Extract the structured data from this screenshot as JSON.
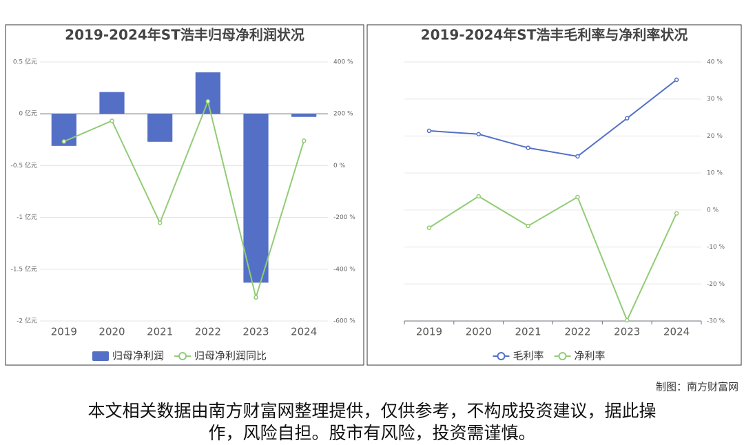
{
  "chart_data": [
    {
      "type": "bar",
      "title": "2019-2024年ST浩丰归母净利润状况",
      "categories": [
        "2019",
        "2020",
        "2021",
        "2022",
        "2023",
        "2024"
      ],
      "series": [
        {
          "name": "归母净利润",
          "type": "bar",
          "color": "#5470c6",
          "values": [
            -0.31,
            0.21,
            -0.27,
            0.4,
            -1.63,
            -0.03
          ]
        },
        {
          "name": "归母净利润同比",
          "type": "line",
          "axis": "y2",
          "color": "#91cc75",
          "values": [
            93,
            173,
            -221,
            248,
            -509,
            96
          ]
        }
      ],
      "ylim": [
        -2,
        0.5
      ],
      "yticks": [
        {
          "value": 0.5,
          "label": "0.5 亿元"
        },
        {
          "value": 0,
          "label": "0 亿元"
        },
        {
          "value": -0.5,
          "label": "-0.5 亿元"
        },
        {
          "value": -1,
          "label": "-1 亿元"
        },
        {
          "value": -1.5,
          "label": "-1.5 亿元"
        },
        {
          "value": -2,
          "label": "-2 亿元"
        }
      ],
      "y2lim": [
        -600,
        400
      ],
      "y2ticks": [
        {
          "value": 400,
          "label": "400 %"
        },
        {
          "value": 200,
          "label": "200 %"
        },
        {
          "value": 0,
          "label": "0 %"
        },
        {
          "value": -200,
          "label": "-200 %"
        },
        {
          "value": -400,
          "label": "-400 %"
        },
        {
          "value": -600,
          "label": "-600 %"
        }
      ],
      "grid": true
    },
    {
      "type": "line",
      "title": "2019-2024年ST浩丰毛利率与净利率状况",
      "categories": [
        "2019",
        "2020",
        "2021",
        "2022",
        "2023",
        "2024"
      ],
      "series": [
        {
          "name": "毛利率",
          "type": "line",
          "axis": "y2",
          "color": "#5470c6",
          "values": [
            21.4,
            20.5,
            16.8,
            14.5,
            24.8,
            35.2
          ]
        },
        {
          "name": "净利率",
          "type": "line",
          "axis": "y2",
          "color": "#91cc75",
          "values": [
            -4.8,
            3.7,
            -4.3,
            3.5,
            -29.8,
            -0.9
          ]
        }
      ],
      "y2lim": [
        -30,
        40
      ],
      "y2ticks": [
        {
          "value": 40,
          "label": "40 %"
        },
        {
          "value": 30,
          "label": "30 %"
        },
        {
          "value": 20,
          "label": "20 %"
        },
        {
          "value": 10,
          "label": "10 %"
        },
        {
          "value": 0,
          "label": "0 %"
        },
        {
          "value": -10,
          "label": "-10 %"
        },
        {
          "value": -20,
          "label": "-20 %"
        },
        {
          "value": -30,
          "label": "-30 %"
        }
      ],
      "grid": true
    }
  ],
  "credit": "制图：南方财富网",
  "disclaimer": [
    "本文相关数据由南方财富网整理提供，仅供参考，不构成投资建议，据此操",
    "作，风险自担。股市有风险，投资需谨慎。"
  ]
}
